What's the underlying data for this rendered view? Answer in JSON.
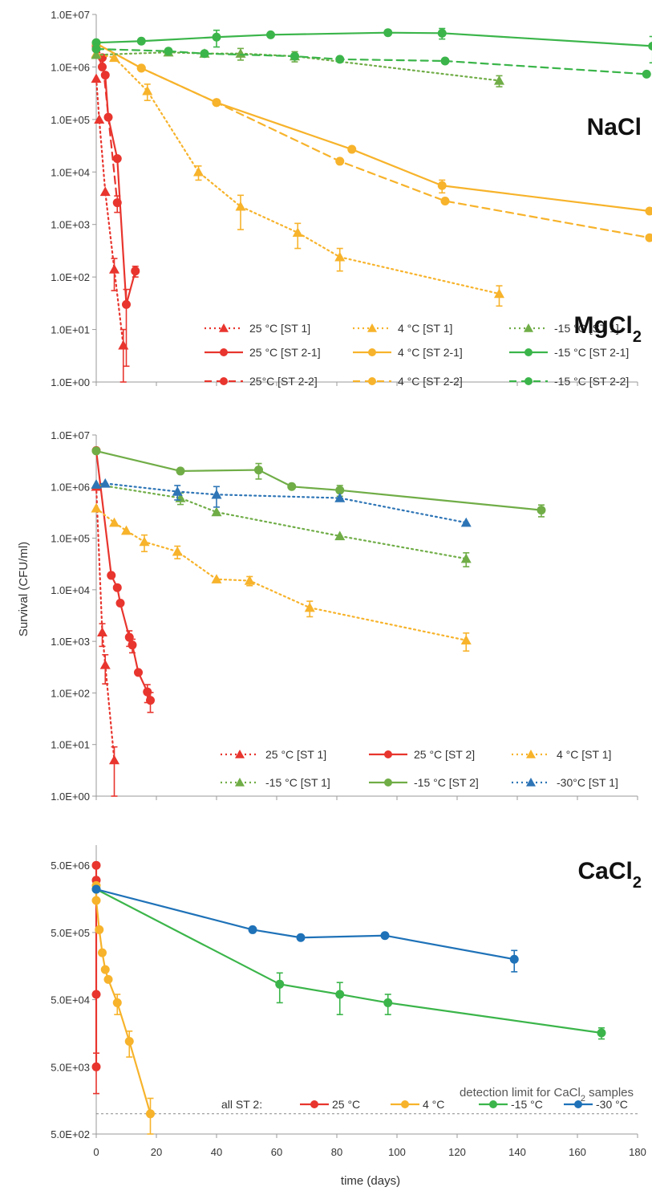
{
  "figure": {
    "x_axis_label": "time (days)",
    "y_axis_label": "Survival (CFU/ml)",
    "x_ticks": [
      "0",
      "20",
      "40",
      "60",
      "80",
      "100",
      "120",
      "140",
      "160",
      "180"
    ]
  },
  "chart_data": [
    {
      "type": "line",
      "panel_label": "NaCl",
      "panel_label_sub": "",
      "yscale": "log",
      "ylim": [
        1,
        10000000
      ],
      "xlim": [
        0,
        180
      ],
      "ytick_labels": [
        "1.0E+07",
        "1.0E+06",
        "1.0E+05",
        "1.0E+04",
        "1.0E+03",
        "1.0E+02",
        "1.0E+01",
        "1.0E+00"
      ],
      "ytick_values": [
        10000000,
        1000000,
        100000,
        10000,
        1000,
        100,
        10,
        1
      ],
      "legend_columns": 3,
      "series": [
        {
          "name": "25 °C [ST 1]",
          "color": "#e8352e",
          "dash": "dotted",
          "marker": "triangle",
          "x": [
            0,
            1,
            3,
            6,
            9
          ],
          "y": [
            600000,
            100000,
            4200,
            140,
            5
          ],
          "err": [
            0,
            0,
            0,
            85,
            5
          ]
        },
        {
          "name": "25 °C [ST 2-1]",
          "color": "#e8352e",
          "dash": "solid",
          "marker": "circle",
          "x": [
            0,
            2,
            3,
            4,
            7,
            10,
            13
          ],
          "y": [
            2200000,
            1000000,
            700000,
            110000,
            18000,
            30,
            130
          ],
          "err": [
            0,
            0,
            0,
            0,
            0,
            28,
            30
          ]
        },
        {
          "name": "25°C [ST 2-2]",
          "color": "#e8352e",
          "dash": "dashed",
          "marker": "circle",
          "x": [
            0,
            2,
            7
          ],
          "y": [
            2500000,
            1500000,
            2600
          ],
          "err": [
            0,
            0,
            900
          ]
        },
        {
          "name": "4 °C [ST 1]",
          "color": "#f7b32b",
          "dash": "dotted",
          "marker": "triangle",
          "x": [
            0,
            6,
            17,
            34,
            48,
            67,
            81,
            134
          ],
          "y": [
            1800000,
            1500000,
            350000,
            10000,
            2200,
            700,
            240,
            48
          ],
          "err": [
            0,
            0,
            120000,
            3000,
            1400,
            350,
            110,
            20
          ]
        },
        {
          "name": "4 °C [ST 2-1]",
          "color": "#f7b32b",
          "dash": "solid",
          "marker": "circle",
          "x": [
            0,
            15,
            40,
            85,
            115,
            184
          ],
          "y": [
            2800000,
            950000,
            210000,
            27000,
            5500,
            1800
          ],
          "err": [
            0,
            0,
            0,
            0,
            1500,
            0
          ]
        },
        {
          "name": "4 °C [ST 2-2]",
          "color": "#f7b32b",
          "dash": "dashed",
          "marker": "circle",
          "x": [
            0,
            15,
            40,
            81,
            116,
            184
          ],
          "y": [
            2800000,
            950000,
            210000,
            16000,
            2800,
            560
          ],
          "err": [
            0,
            0,
            0,
            0,
            0,
            0
          ]
        },
        {
          "name": "-15 °C [ST 1]",
          "color": "#70ad47",
          "dash": "dotted",
          "marker": "triangle",
          "x": [
            0,
            24,
            36,
            48,
            66,
            134
          ],
          "y": [
            1700000,
            1900000,
            1800000,
            1800000,
            1600000,
            550000
          ],
          "err": [
            0,
            0,
            0,
            450000,
            350000,
            130000
          ]
        },
        {
          "name": "-15 °C [ST 2-1]",
          "color": "#3bb54a",
          "dash": "solid",
          "marker": "circle",
          "x": [
            0,
            15,
            40,
            58,
            97,
            115,
            185
          ],
          "y": [
            2900000,
            3100000,
            3700000,
            4100000,
            4500000,
            4400000,
            2500000
          ],
          "err": [
            0,
            0,
            1300000,
            0,
            0,
            1000000,
            1300000
          ]
        },
        {
          "name": "-15 °C [ST 2-2]",
          "color": "#3bb54a",
          "dash": "dashed",
          "marker": "circle",
          "x": [
            0,
            24,
            36,
            66,
            81,
            116,
            183
          ],
          "y": [
            2200000,
            2000000,
            1800000,
            1600000,
            1400000,
            1300000,
            730000
          ],
          "err": [
            0,
            0,
            0,
            0,
            0,
            0,
            0
          ]
        }
      ]
    },
    {
      "type": "line",
      "panel_label": "MgCl",
      "panel_label_sub": "2",
      "yscale": "log",
      "ylim": [
        1,
        10000000
      ],
      "xlim": [
        0,
        180
      ],
      "ytick_labels": [
        "1.0E+07",
        "1.0E+06",
        "1.0E+05",
        "1.0E+04",
        "1.0E+03",
        "1.0E+02",
        "1.0E+01",
        "1.0E+00"
      ],
      "ytick_values": [
        10000000,
        1000000,
        100000,
        10000,
        1000,
        100,
        10,
        1
      ],
      "legend_columns": 3,
      "series": [
        {
          "name": "25 °C [ST 1]",
          "color": "#e8352e",
          "dash": "dotted",
          "marker": "triangle",
          "x": [
            0,
            2,
            3,
            6
          ],
          "y": [
            1000000,
            1500,
            350,
            5
          ],
          "err": [
            0,
            700,
            200,
            4
          ]
        },
        {
          "name": "25 °C [ST 2]",
          "color": "#e8352e",
          "dash": "solid",
          "marker": "circle",
          "x": [
            0,
            5,
            7,
            8,
            11,
            12,
            14,
            17,
            18
          ],
          "y": [
            5000000,
            19000,
            11000,
            5500,
            1200,
            850,
            250,
            105,
            72
          ],
          "err": [
            0,
            0,
            0,
            0,
            400,
            250,
            0,
            40,
            30
          ]
        },
        {
          "name": "4 °C [ST 1]",
          "color": "#f7b32b",
          "dash": "dotted",
          "marker": "triangle",
          "x": [
            0,
            6,
            10,
            16,
            27,
            40,
            51,
            71,
            123
          ],
          "y": [
            380000,
            200000,
            140000,
            85000,
            55000,
            16000,
            15000,
            4500,
            1050
          ],
          "err": [
            0,
            0,
            0,
            30000,
            15000,
            0,
            3000,
            1500,
            400
          ]
        },
        {
          "name": "-15 °C [ST 1]",
          "color": "#70ad47",
          "dash": "dotted",
          "marker": "triangle",
          "x": [
            0,
            28,
            40,
            81,
            123
          ],
          "y": [
            1100000,
            600000,
            320000,
            110000,
            40000
          ],
          "err": [
            0,
            150000,
            0,
            0,
            12000
          ]
        },
        {
          "name": "-15 °C [ST 2]",
          "color": "#70ad47",
          "dash": "solid",
          "marker": "circle",
          "x": [
            0,
            28,
            54,
            65,
            81,
            148
          ],
          "y": [
            4900000,
            2000000,
            2100000,
            1000000,
            850000,
            350000
          ],
          "err": [
            0,
            0,
            700000,
            0,
            200000,
            90000
          ]
        },
        {
          "name": "-30°C [ST 1]",
          "color": "#2e75b6",
          "dash": "dotted",
          "marker": "triangle",
          "x": [
            0,
            3,
            27,
            40,
            81,
            123
          ],
          "y": [
            1100000,
            1150000,
            800000,
            700000,
            600000,
            200000
          ],
          "err": [
            0,
            0,
            250000,
            300000,
            0,
            0
          ]
        }
      ]
    },
    {
      "type": "line",
      "panel_label": "CaCl",
      "panel_label_sub": "2",
      "yscale": "log",
      "ylim": [
        500,
        10000000
      ],
      "xlim": [
        0,
        180
      ],
      "ytick_labels": [
        "5.0E+06",
        "5.0E+05",
        "5.0E+04",
        "5.0E+03",
        "5.0E+02"
      ],
      "ytick_values": [
        5000000,
        500000,
        50000,
        5000,
        500
      ],
      "legend_prefix": "all ST 2:",
      "legend_columns": 4,
      "detection_limit": {
        "label": "detection limit for CaCl",
        "label_sub": "2",
        "label_suffix": " samples",
        "value": 1000
      },
      "series": [
        {
          "name": "25 °C",
          "color": "#e8352e",
          "dash": "solid",
          "marker": "circle",
          "x": [
            0,
            0,
            0,
            0
          ],
          "y": [
            5000000,
            3000000,
            60000,
            5000
          ],
          "err": [
            0,
            0,
            0,
            3000
          ]
        },
        {
          "name": "4 °C",
          "color": "#f7b32b",
          "dash": "solid",
          "marker": "circle",
          "x": [
            0,
            0,
            1,
            2,
            3,
            4,
            7,
            11,
            18
          ],
          "y": [
            2500000,
            1500000,
            550000,
            250000,
            140000,
            100000,
            45000,
            12000,
            1000
          ],
          "err": [
            0,
            0,
            0,
            0,
            0,
            0,
            15000,
            5000,
            700
          ]
        },
        {
          "name": "-15 °C",
          "color": "#3bb54a",
          "dash": "solid",
          "marker": "circle",
          "x": [
            0,
            61,
            81,
            97,
            168
          ],
          "y": [
            2200000,
            85000,
            60000,
            45000,
            16000
          ],
          "err": [
            0,
            40000,
            30000,
            15000,
            3000
          ]
        },
        {
          "name": "-30 °C",
          "color": "#1f72b8",
          "dash": "solid",
          "marker": "circle",
          "x": [
            0,
            52,
            68,
            96,
            139
          ],
          "y": [
            2200000,
            550000,
            420000,
            450000,
            200000
          ],
          "err": [
            0,
            0,
            0,
            0,
            70000
          ]
        }
      ]
    }
  ]
}
